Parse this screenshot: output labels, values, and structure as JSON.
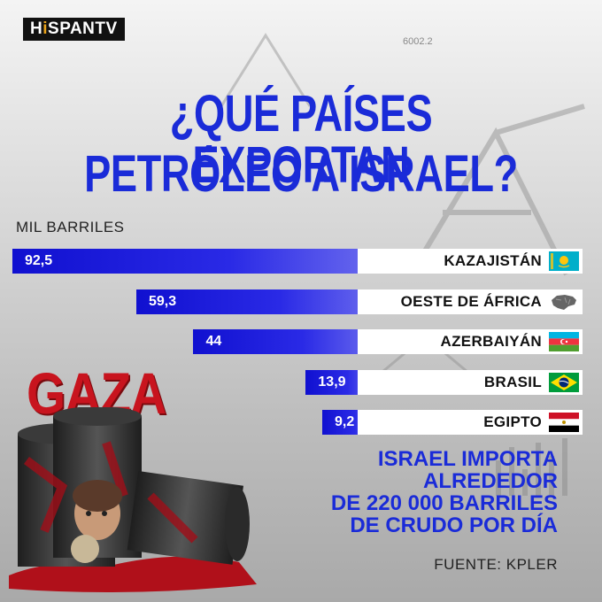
{
  "brand": {
    "logo_prefix": "H",
    "logo_accent": "i",
    "logo_rest": "SPANTV"
  },
  "background": {
    "ticker_text": "6002.2"
  },
  "title": {
    "line1": "¿QUÉ PAÍSES EXPORTAN",
    "line2": "PETRÓLEO A ISRAEL?"
  },
  "colors": {
    "accent": "#1a2bd8",
    "bar": "#1a1ad8",
    "gaza_red": "#c8141e"
  },
  "overlay": {
    "gaza_label": "GAZA"
  },
  "note": {
    "lines": [
      "ISRAEL IMPORTA",
      "ALREDEDOR",
      "DE 220 000 BARRILES",
      "DE CRUDO POR DÍA"
    ]
  },
  "source": "FUENTE: KPLER",
  "chart_data": {
    "type": "bar",
    "orientation": "horizontal",
    "ylabel": "MIL BARRILES",
    "max_value": 92.5,
    "categories": [
      "KAZAJISTÁN",
      "OESTE DE ÁFRICA",
      "AZERBAIYÁN",
      "BRASIL",
      "EGIPTO"
    ],
    "values": [
      92.5,
      59.3,
      44,
      13.9,
      9.2
    ],
    "value_labels": [
      "92,5",
      "59,3",
      "44",
      "13,9",
      "9,2"
    ],
    "flags": [
      "kazakhstan-flag-icon",
      "west-africa-map-icon",
      "azerbaijan-flag-icon",
      "brazil-flag-icon",
      "egypt-flag-icon"
    ]
  }
}
